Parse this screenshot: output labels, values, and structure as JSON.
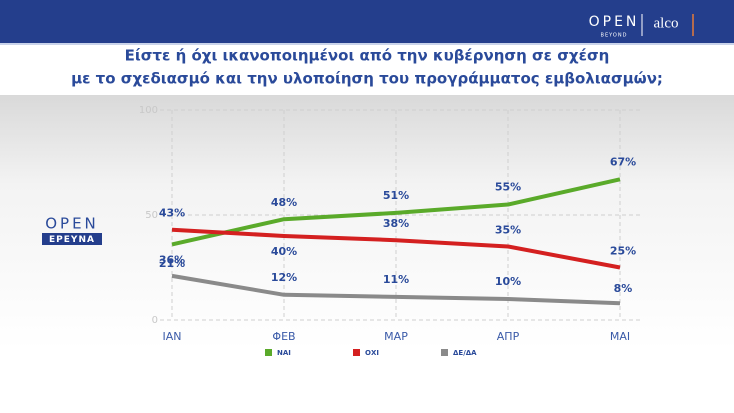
{
  "header": {
    "logo": "OPEN",
    "logo_sub": "BEYOND",
    "partner": "alco"
  },
  "side_logo": {
    "top": "OPEN",
    "bottom": "ΕΡΕΥΝΑ"
  },
  "chart_data": {
    "type": "line",
    "title": [
      "Είστε ή όχι ικανοποιημένοι από την κυβέρνηση σε σχέση",
      "με το σχεδιασμό και την υλοποίηση του προγράμματος εμβολιασμών;"
    ],
    "categories": [
      "ΙΑΝ",
      "ΦΕΒ",
      "ΜΑΡ",
      "ΑΠΡ",
      "ΜΑΙ"
    ],
    "series": [
      {
        "name": "ΝΑΙ",
        "color": "#5aaa2a",
        "values": [
          36,
          48,
          51,
          55,
          67
        ],
        "value_labels": [
          "36%",
          "48%",
          "51%",
          "55%",
          "67%"
        ]
      },
      {
        "name": "ΟΧΙ",
        "color": "#d42020",
        "values": [
          43,
          40,
          38,
          35,
          25
        ],
        "value_labels": [
          "43%",
          "40%",
          "38%",
          "35%",
          "25%"
        ]
      },
      {
        "name": "ΔΕ/ΔΑ",
        "color": "#8a8a8a",
        "values": [
          21,
          12,
          11,
          10,
          8
        ],
        "value_labels": [
          "21%",
          "12%",
          "11%",
          "10%",
          "8%"
        ]
      }
    ],
    "ylim": [
      0,
      100
    ],
    "yticks": [
      0,
      50,
      100
    ],
    "grid": true
  }
}
